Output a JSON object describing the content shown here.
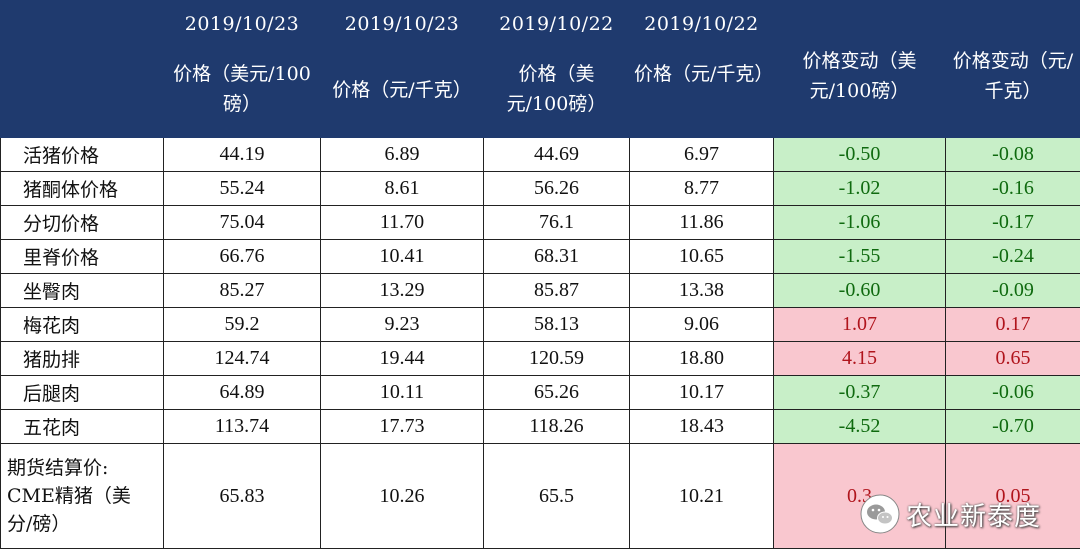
{
  "header": {
    "col1_date": "2019/10/23",
    "col1_label": "价格（美元/100磅）",
    "col2_date": "2019/10/23",
    "col2_label": "价格（元/千克）",
    "col3_date": "2019/10/22",
    "col3_label": "价格（美元/100磅）",
    "col4_date": "2019/10/22",
    "col4_label": "价格（元/千克）",
    "col5_label": "价格变动（美元/100磅）",
    "col6_label": "价格变动（元/千克）"
  },
  "rows": [
    {
      "name": "活猪价格",
      "v1": "44.19",
      "v2": "6.89",
      "v3": "44.69",
      "v4": "6.97",
      "v5": "-0.50",
      "v6": "-0.08"
    },
    {
      "name": "猪酮体价格",
      "v1": "55.24",
      "v2": "8.61",
      "v3": "56.26",
      "v4": "8.77",
      "v5": "-1.02",
      "v6": "-0.16"
    },
    {
      "name": "分切价格",
      "v1": "75.04",
      "v2": "11.70",
      "v3": "76.1",
      "v4": "11.86",
      "v5": "-1.06",
      "v6": "-0.17"
    },
    {
      "name": "里脊价格",
      "v1": "66.76",
      "v2": "10.41",
      "v3": "68.31",
      "v4": "10.65",
      "v5": "-1.55",
      "v6": "-0.24"
    },
    {
      "name": "坐臀肉",
      "v1": "85.27",
      "v2": "13.29",
      "v3": "85.87",
      "v4": "13.38",
      "v5": "-0.60",
      "v6": "-0.09"
    },
    {
      "name": "梅花肉",
      "v1": "59.2",
      "v2": "9.23",
      "v3": "58.13",
      "v4": "9.06",
      "v5": "1.07",
      "v6": "0.17"
    },
    {
      "name": "猪肋排",
      "v1": "124.74",
      "v2": "19.44",
      "v3": "120.59",
      "v4": "18.80",
      "v5": "4.15",
      "v6": "0.65"
    },
    {
      "name": "后腿肉",
      "v1": "64.89",
      "v2": "10.11",
      "v3": "65.26",
      "v4": "10.17",
      "v5": "-0.37",
      "v6": "-0.06"
    },
    {
      "name": "五花肉",
      "v1": "113.74",
      "v2": "17.73",
      "v3": "118.26",
      "v4": "18.43",
      "v5": "-4.52",
      "v6": "-0.70"
    }
  ],
  "futures": {
    "name_line1": "期货结算价:",
    "name_line2": "CME精猪（美",
    "name_line3": "分/磅）",
    "v1": "65.83",
    "v2": "10.26",
    "v3": "65.5",
    "v4": "10.21",
    "v5": "0.3",
    "v6": "0.05"
  },
  "watermark": {
    "text": "农业新泰度",
    "icon": "wechat-icon"
  },
  "colors": {
    "header_bg": "#1f3a6e",
    "down_bg": "#c8efc8",
    "up_bg": "#f9c7cf",
    "down_text": "#0f6a0f",
    "up_text": "#b0141c"
  }
}
